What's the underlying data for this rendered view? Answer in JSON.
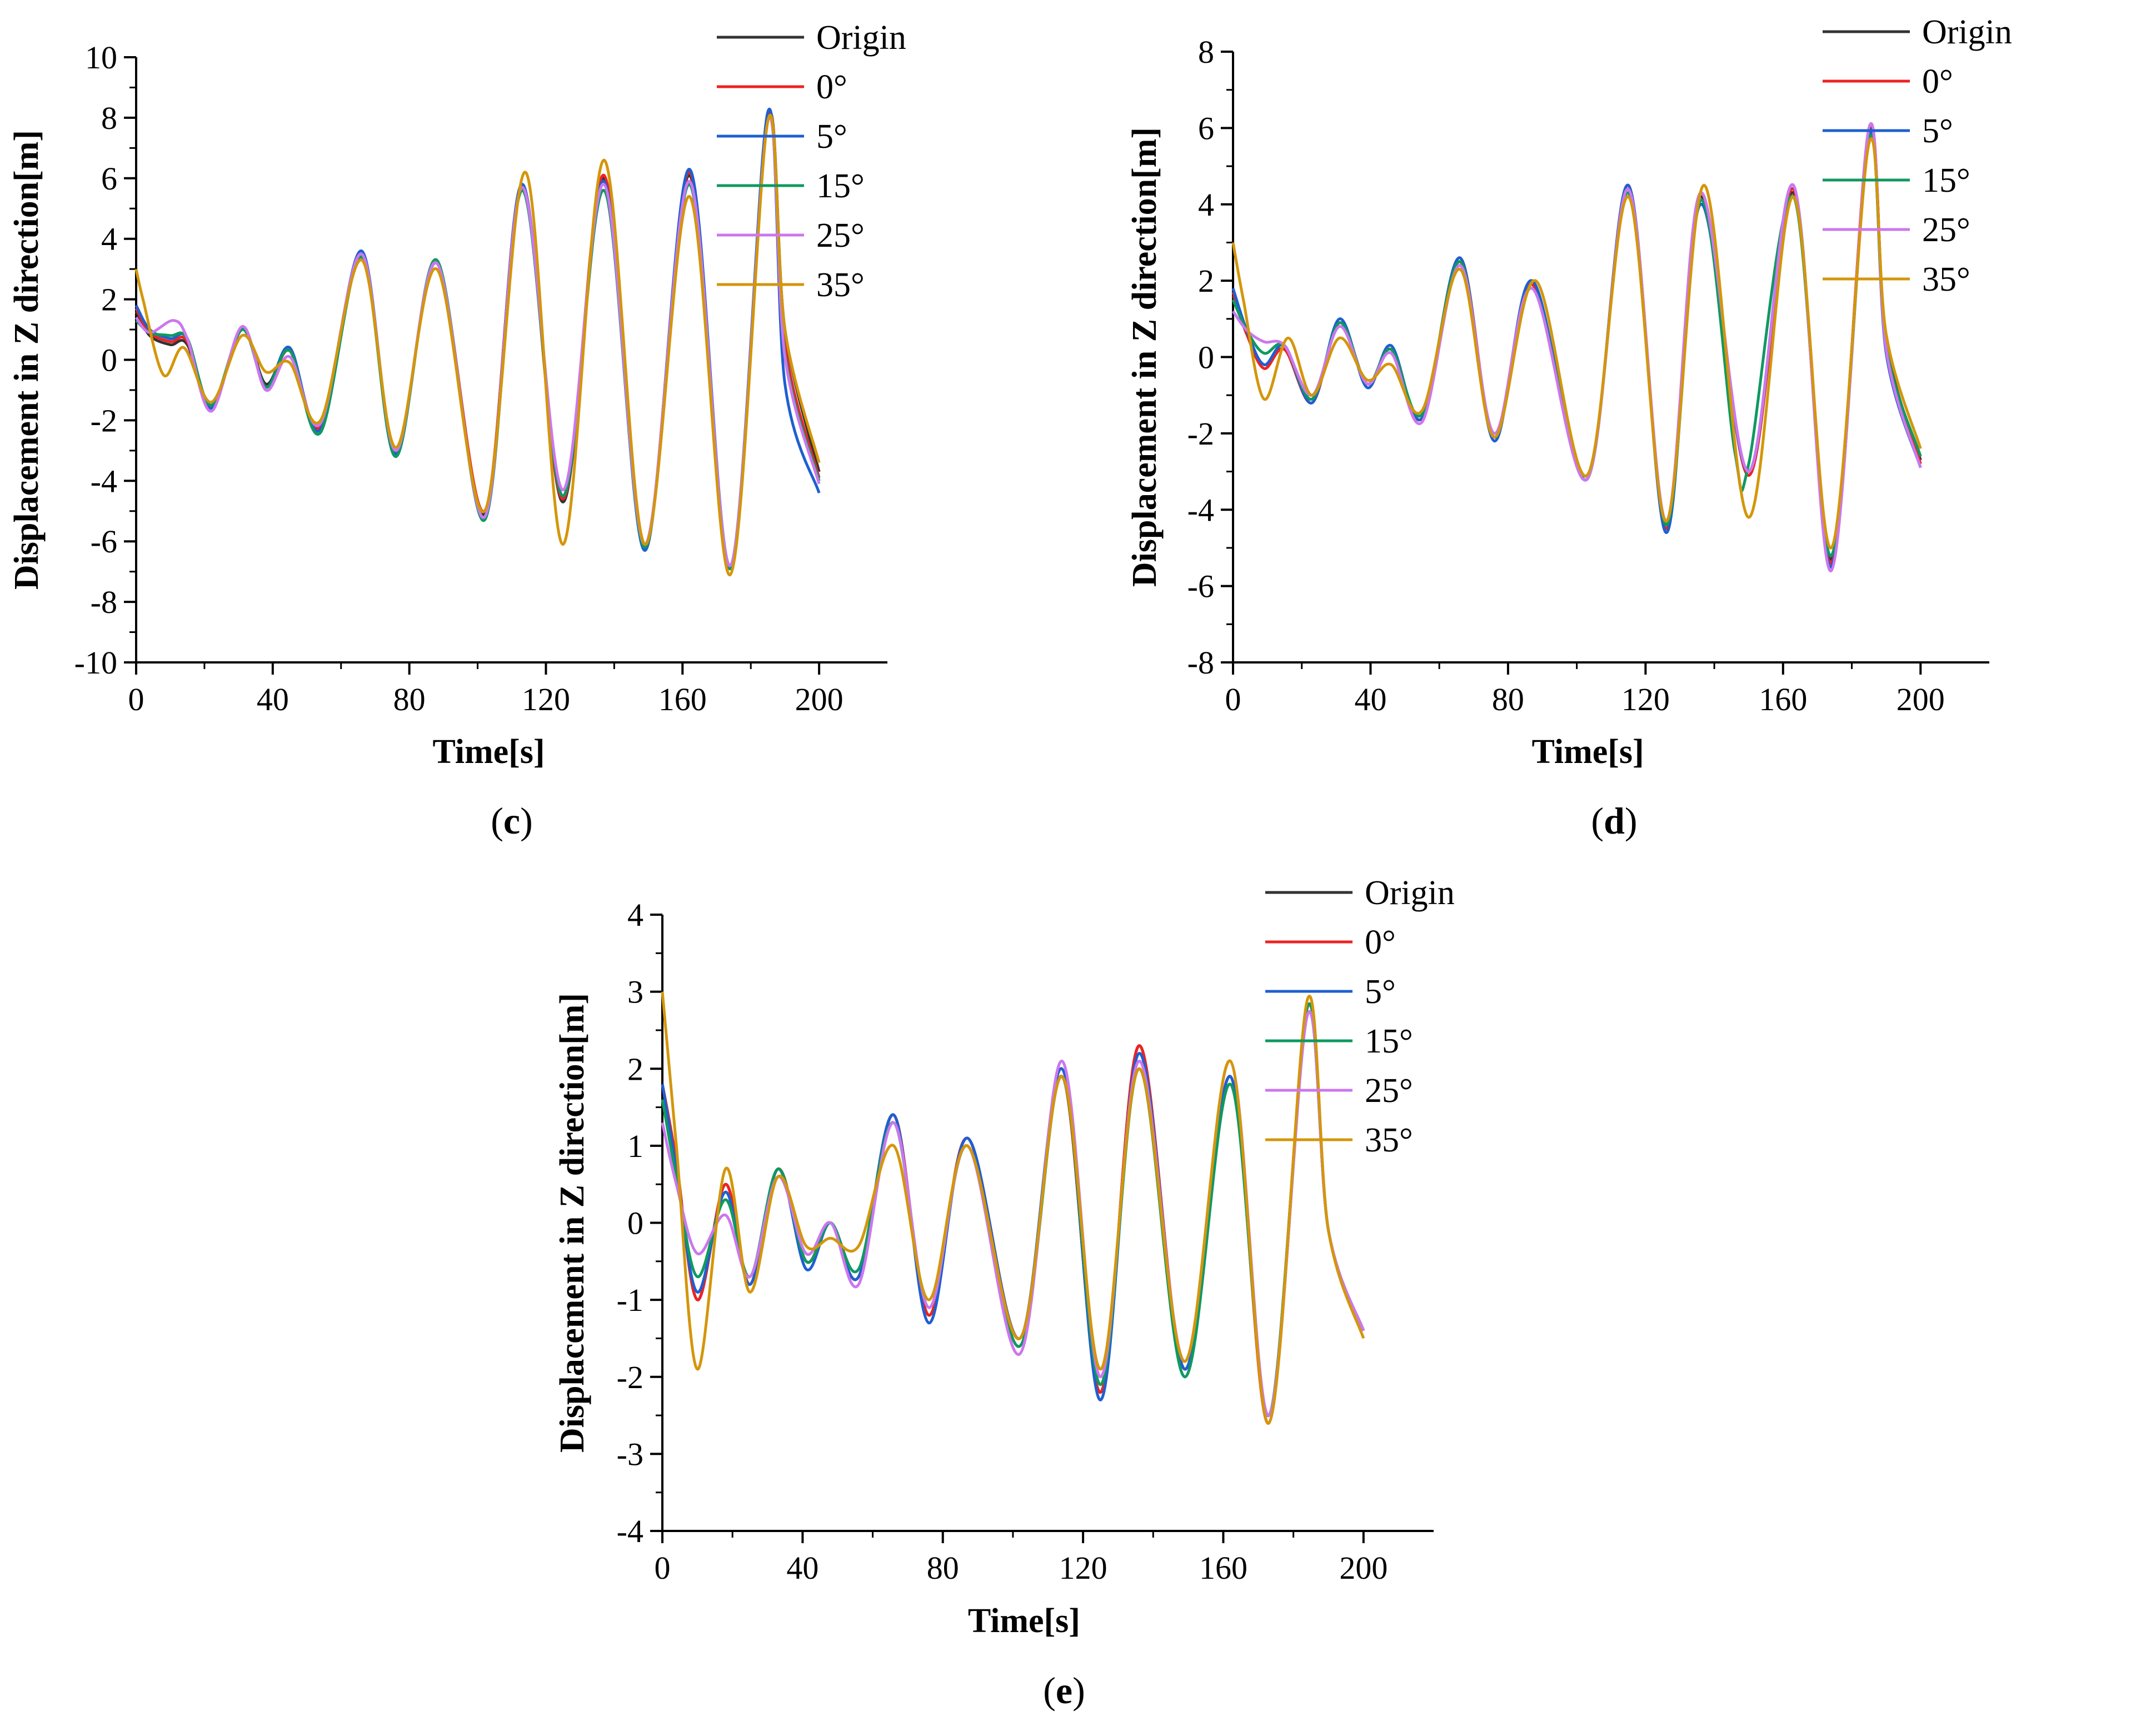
{
  "figure": {
    "panels": [
      "c",
      "d",
      "e"
    ]
  },
  "chart_data": [
    {
      "type": "line",
      "panel_label": "c",
      "xlabel": "Time[s]",
      "ylabel": "Displacement in Z direction[m]",
      "xlim": [
        0,
        220
      ],
      "ylim": [
        -10,
        10
      ],
      "xticks": [
        0,
        40,
        80,
        120,
        160,
        200
      ],
      "yticks": [
        -10,
        -8,
        -6,
        -4,
        -2,
        0,
        2,
        4,
        6,
        8,
        10
      ],
      "legend_position": "top-right",
      "series": [
        {
          "name": "Origin",
          "color": "#333333",
          "x": [
            0,
            4,
            10,
            15,
            22,
            31,
            38,
            45,
            54,
            66,
            76,
            88,
            102,
            113,
            125,
            137,
            149,
            162,
            174,
            185,
            190,
            200
          ],
          "y": [
            1.6,
            0.8,
            0.5,
            0.5,
            -1.6,
            1.0,
            -0.8,
            0.3,
            -2.2,
            3.5,
            -3.1,
            3.2,
            -5.1,
            5.8,
            -4.7,
            6.0,
            -6.2,
            6.1,
            -6.9,
            8.0,
            1.0,
            -3.7
          ]
        },
        {
          "name": "0°",
          "color": "#ee2222",
          "x": [
            0,
            4,
            10,
            15,
            22,
            31,
            38,
            45,
            54,
            66,
            76,
            88,
            102,
            113,
            125,
            137,
            149,
            162,
            174,
            185,
            190,
            200
          ],
          "y": [
            1.7,
            0.9,
            0.6,
            0.6,
            -1.6,
            1.0,
            -0.9,
            0.3,
            -2.2,
            3.5,
            -3.1,
            3.2,
            -5.0,
            5.7,
            -4.6,
            6.1,
            -6.2,
            6.2,
            -6.9,
            8.0,
            0.5,
            -3.9
          ]
        },
        {
          "name": "5°",
          "color": "#1f5fd0",
          "x": [
            0,
            4,
            10,
            15,
            22,
            31,
            38,
            45,
            54,
            66,
            76,
            88,
            102,
            113,
            125,
            137,
            149,
            162,
            174,
            185,
            190,
            200
          ],
          "y": [
            1.8,
            1.0,
            0.7,
            0.7,
            -1.6,
            1.0,
            -0.9,
            0.4,
            -2.3,
            3.6,
            -3.1,
            3.2,
            -5.2,
            5.8,
            -4.5,
            5.9,
            -6.3,
            6.3,
            -6.8,
            8.2,
            -0.8,
            -4.4
          ]
        },
        {
          "name": "15°",
          "color": "#0f9960",
          "x": [
            0,
            4,
            10,
            15,
            22,
            31,
            38,
            45,
            54,
            66,
            76,
            88,
            102,
            113,
            125,
            137,
            149,
            162,
            174,
            185,
            190,
            200
          ],
          "y": [
            1.3,
            0.9,
            0.8,
            0.7,
            -1.5,
            1.0,
            -0.9,
            0.3,
            -2.4,
            3.4,
            -3.2,
            3.3,
            -5.3,
            5.6,
            -4.5,
            5.6,
            -6.2,
            5.8,
            -6.9,
            7.9,
            0.2,
            -4.0
          ]
        },
        {
          "name": "25°",
          "color": "#cc77ee",
          "x": [
            0,
            4,
            11,
            15,
            22,
            31,
            38,
            45,
            54,
            66,
            76,
            88,
            102,
            113,
            125,
            137,
            149,
            162,
            174,
            185,
            190,
            200
          ],
          "y": [
            1.4,
            0.9,
            1.3,
            0.7,
            -1.7,
            1.1,
            -1.0,
            0.1,
            -2.1,
            3.5,
            -3.0,
            3.2,
            -5.2,
            5.7,
            -4.3,
            5.8,
            -6.1,
            5.9,
            -6.8,
            7.9,
            0.1,
            -4.1
          ]
        },
        {
          "name": "35°",
          "color": "#d4960a",
          "x": [
            0,
            2,
            8,
            14,
            22,
            31,
            38,
            45,
            54,
            66,
            76,
            88,
            102,
            114,
            125,
            137,
            149,
            162,
            174,
            185,
            190,
            200
          ],
          "y": [
            3.0,
            2.0,
            -0.5,
            0.4,
            -1.4,
            0.8,
            -0.4,
            -0.1,
            -2.0,
            3.3,
            -2.9,
            3.0,
            -5.0,
            6.2,
            -6.1,
            6.6,
            -6.1,
            5.4,
            -7.1,
            7.9,
            1.0,
            -3.4
          ]
        }
      ]
    },
    {
      "type": "line",
      "panel_label": "d",
      "xlabel": "Time[s]",
      "ylabel": "Displacement in Z direction[m]",
      "xlim": [
        0,
        220
      ],
      "ylim": [
        -8,
        8
      ],
      "xticks": [
        0,
        40,
        80,
        120,
        160,
        200
      ],
      "yticks": [
        -8,
        -6,
        -4,
        -2,
        0,
        2,
        4,
        6,
        8
      ],
      "legend_position": "top-right",
      "series": [
        {
          "name": "Origin",
          "color": "#333333",
          "x": [
            0,
            4,
            9,
            15,
            23,
            31,
            39,
            46,
            55,
            66,
            76,
            87,
            103,
            115,
            126,
            136,
            150,
            163,
            174,
            185,
            190,
            200
          ],
          "y": [
            1.6,
            0.6,
            -0.2,
            0.2,
            -1.1,
            0.9,
            -0.7,
            0.2,
            -1.6,
            2.5,
            -2.1,
            1.9,
            -3.2,
            4.4,
            -4.4,
            4.2,
            -3.1,
            4.3,
            -5.3,
            5.9,
            0.4,
            -2.7
          ]
        },
        {
          "name": "0°",
          "color": "#ee2222",
          "x": [
            0,
            4,
            9,
            15,
            23,
            31,
            39,
            46,
            55,
            66,
            76,
            87,
            103,
            115,
            126,
            136,
            150,
            163,
            174,
            185,
            190,
            200
          ],
          "y": [
            1.7,
            0.6,
            -0.3,
            0.2,
            -1.2,
            0.9,
            -0.7,
            0.2,
            -1.6,
            2.6,
            -2.1,
            1.9,
            -3.2,
            4.5,
            -4.5,
            4.3,
            -3.1,
            4.4,
            -5.4,
            6.0,
            0.3,
            -2.8
          ]
        },
        {
          "name": "5°",
          "color": "#1f5fd0",
          "x": [
            0,
            4,
            9,
            15,
            23,
            31,
            39,
            46,
            55,
            66,
            76,
            87,
            103,
            115,
            126,
            136,
            150,
            163,
            174,
            185,
            190,
            200
          ],
          "y": [
            1.8,
            0.7,
            -0.2,
            0.3,
            -1.2,
            1.0,
            -0.8,
            0.3,
            -1.6,
            2.6,
            -2.2,
            2.0,
            -3.2,
            4.5,
            -4.6,
            4.0,
            -3.0,
            4.5,
            -5.5,
            5.8,
            0.1,
            -2.9
          ]
        },
        {
          "name": "15°",
          "color": "#0f9960",
          "x": [
            0,
            4,
            9,
            15,
            23,
            31,
            39,
            46,
            55,
            66,
            76,
            87,
            103,
            115,
            126,
            136,
            146,
            150,
            163,
            174,
            185,
            190,
            200
          ],
          "y": [
            1.5,
            0.7,
            0.1,
            0.3,
            -1.1,
            0.9,
            -0.7,
            0.2,
            -1.5,
            2.5,
            -2.1,
            1.8,
            -3.1,
            4.3,
            -4.4,
            4.1,
            -2.5,
            -2.8,
            4.2,
            -5.2,
            5.7,
            0.3,
            -2.6
          ]
        },
        {
          "name": "25°",
          "color": "#cc77ee",
          "x": [
            0,
            4,
            9,
            15,
            23,
            31,
            39,
            46,
            55,
            66,
            76,
            87,
            103,
            115,
            126,
            136,
            150,
            163,
            174,
            185,
            190,
            200
          ],
          "y": [
            1.2,
            0.7,
            0.4,
            0.3,
            -1.0,
            0.8,
            -0.7,
            0.1,
            -1.7,
            2.4,
            -2.0,
            1.8,
            -3.2,
            4.4,
            -4.3,
            4.3,
            -3.0,
            4.5,
            -5.6,
            6.0,
            0.2,
            -2.9
          ]
        },
        {
          "name": "35°",
          "color": "#d4960a",
          "x": [
            0,
            3,
            9,
            16,
            23,
            31,
            39,
            46,
            55,
            66,
            76,
            88,
            103,
            115,
            126,
            137,
            150,
            163,
            174,
            185,
            190,
            200
          ],
          "y": [
            3.0,
            1.5,
            -1.1,
            0.5,
            -1.0,
            0.5,
            -0.6,
            -0.2,
            -1.4,
            2.3,
            -2.1,
            2.0,
            -3.1,
            4.2,
            -4.3,
            4.5,
            -4.2,
            4.2,
            -5.0,
            5.6,
            0.6,
            -2.4
          ]
        }
      ]
    },
    {
      "type": "line",
      "panel_label": "e",
      "xlabel": "Time[s]",
      "ylabel": "Displacement in Z direction[m]",
      "xlim": [
        0,
        220
      ],
      "ylim": [
        -4,
        4
      ],
      "xticks": [
        0,
        40,
        80,
        120,
        160,
        200
      ],
      "yticks": [
        -4,
        -3,
        -2,
        -1,
        0,
        1,
        2,
        3,
        4
      ],
      "legend_position": "top-right",
      "series": [
        {
          "name": "Origin",
          "color": "#333333",
          "x": [
            0,
            4,
            10,
            18,
            25,
            33,
            41,
            48,
            56,
            66,
            76,
            87,
            102,
            114,
            125,
            136,
            149,
            162,
            173,
            184,
            190,
            200
          ],
          "y": [
            1.8,
            0.8,
            -1.0,
            0.5,
            -0.8,
            0.7,
            -0.5,
            0.0,
            -0.7,
            1.4,
            -1.2,
            1.1,
            -1.5,
            1.9,
            -2.2,
            2.3,
            -1.9,
            1.9,
            -2.5,
            2.8,
            -0.1,
            -1.4
          ]
        },
        {
          "name": "0°",
          "color": "#ee2222",
          "x": [
            0,
            4,
            10,
            18,
            25,
            33,
            41,
            48,
            56,
            66,
            76,
            87,
            102,
            114,
            125,
            136,
            149,
            162,
            173,
            184,
            190,
            200
          ],
          "y": [
            1.8,
            0.8,
            -1.0,
            0.5,
            -0.8,
            0.7,
            -0.5,
            0.0,
            -0.7,
            1.4,
            -1.2,
            1.1,
            -1.5,
            1.9,
            -2.2,
            2.3,
            -1.9,
            1.9,
            -2.6,
            2.8,
            -0.1,
            -1.4
          ]
        },
        {
          "name": "5°",
          "color": "#1f5fd0",
          "x": [
            0,
            4,
            10,
            18,
            25,
            33,
            41,
            48,
            56,
            66,
            76,
            87,
            102,
            114,
            125,
            136,
            149,
            162,
            173,
            184,
            190,
            200
          ],
          "y": [
            1.8,
            0.7,
            -0.9,
            0.4,
            -0.8,
            0.7,
            -0.6,
            0.0,
            -0.7,
            1.4,
            -1.3,
            1.1,
            -1.5,
            2.0,
            -2.3,
            2.2,
            -1.9,
            1.9,
            -2.5,
            2.7,
            -0.1,
            -1.4
          ]
        },
        {
          "name": "15°",
          "color": "#0f9960",
          "x": [
            0,
            4,
            10,
            18,
            25,
            33,
            41,
            48,
            56,
            66,
            76,
            87,
            102,
            114,
            125,
            136,
            149,
            162,
            173,
            184,
            190,
            200
          ],
          "y": [
            1.6,
            0.6,
            -0.7,
            0.3,
            -0.7,
            0.7,
            -0.5,
            0.0,
            -0.6,
            1.3,
            -1.1,
            1.0,
            -1.6,
            1.9,
            -2.1,
            2.0,
            -2.0,
            1.8,
            -2.5,
            2.8,
            -0.1,
            -1.4
          ]
        },
        {
          "name": "25°",
          "color": "#cc77ee",
          "x": [
            0,
            4,
            10,
            18,
            25,
            33,
            41,
            48,
            56,
            66,
            76,
            87,
            102,
            114,
            125,
            136,
            149,
            162,
            173,
            184,
            190,
            200
          ],
          "y": [
            1.3,
            0.5,
            -0.4,
            0.1,
            -0.7,
            0.6,
            -0.4,
            0.0,
            -0.8,
            1.3,
            -1.1,
            1.0,
            -1.7,
            2.1,
            -2.0,
            2.1,
            -1.8,
            2.1,
            -2.5,
            2.7,
            -0.1,
            -1.4
          ]
        },
        {
          "name": "35°",
          "color": "#d4960a",
          "x": [
            0,
            4,
            10,
            18,
            25,
            33,
            41,
            48,
            56,
            66,
            76,
            87,
            102,
            114,
            125,
            136,
            149,
            162,
            173,
            184,
            190,
            200
          ],
          "y": [
            3.0,
            1.0,
            -1.9,
            0.7,
            -0.9,
            0.6,
            -0.3,
            -0.2,
            -0.3,
            1.0,
            -1.0,
            1.0,
            -1.5,
            1.9,
            -1.9,
            2.0,
            -1.8,
            2.1,
            -2.6,
            2.9,
            -0.1,
            -1.5
          ]
        }
      ]
    }
  ]
}
